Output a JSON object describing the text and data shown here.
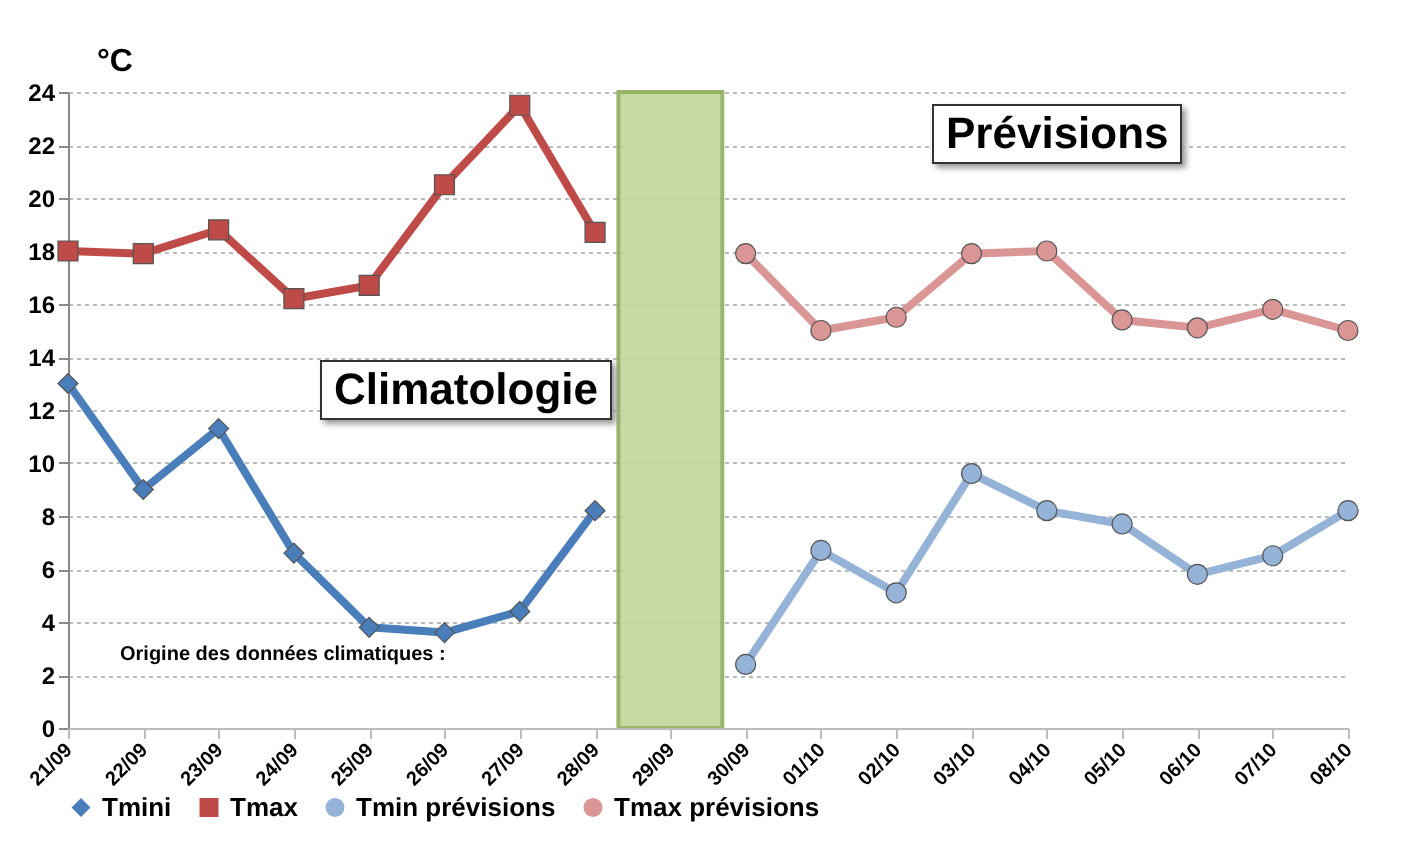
{
  "chart_data": {
    "type": "line",
    "ylabel": "°C",
    "categories": [
      "21/09",
      "22/09",
      "23/09",
      "24/09",
      "25/09",
      "26/09",
      "27/09",
      "28/09",
      "29/09",
      "30/09",
      "01/10",
      "02/10",
      "03/10",
      "04/10",
      "05/10",
      "06/10",
      "07/10",
      "08/10"
    ],
    "series": [
      {
        "type": "bar",
        "color": "#c3d69b",
        "values": [
          null,
          null,
          null,
          null,
          null,
          null,
          null,
          null,
          24,
          null,
          null,
          null,
          null,
          null,
          null,
          null,
          null,
          null
        ]
      },
      {
        "name": "Tmini",
        "color": "#4a7ebb",
        "marker": "diamond",
        "values": [
          13.0,
          9.0,
          11.3,
          6.6,
          3.8,
          3.6,
          4.4,
          8.2,
          null,
          null,
          null,
          null,
          null,
          null,
          null,
          null,
          null,
          null
        ]
      },
      {
        "name": "Tmax",
        "color": "#be4b48",
        "marker": "square",
        "values": [
          18.0,
          17.9,
          18.8,
          16.2,
          16.7,
          20.5,
          23.5,
          18.7,
          null,
          null,
          null,
          null,
          null,
          null,
          null,
          null,
          null,
          null
        ]
      },
      {
        "name": "Tmin prévisions",
        "color": "#95b3d7",
        "marker": "circle",
        "values": [
          null,
          null,
          null,
          null,
          null,
          null,
          null,
          null,
          null,
          2.4,
          6.7,
          5.1,
          9.6,
          8.2,
          7.7,
          5.8,
          6.5,
          8.2
        ]
      },
      {
        "name": "Tmax prévisions",
        "color": "#d99694",
        "marker": "circle",
        "values": [
          null,
          null,
          null,
          null,
          null,
          null,
          null,
          null,
          null,
          17.9,
          15.0,
          15.5,
          17.9,
          18.0,
          15.4,
          15.1,
          15.8,
          15.0
        ]
      }
    ],
    "ylim": [
      0,
      24
    ],
    "yticks": [
      0,
      2,
      4,
      6,
      8,
      10,
      12,
      14,
      16,
      18,
      20,
      22,
      24
    ],
    "grid": "y",
    "legend": "bottom",
    "annotations": [
      "Climatologie",
      "Prévisions",
      "Origine des données climatiques :"
    ]
  }
}
